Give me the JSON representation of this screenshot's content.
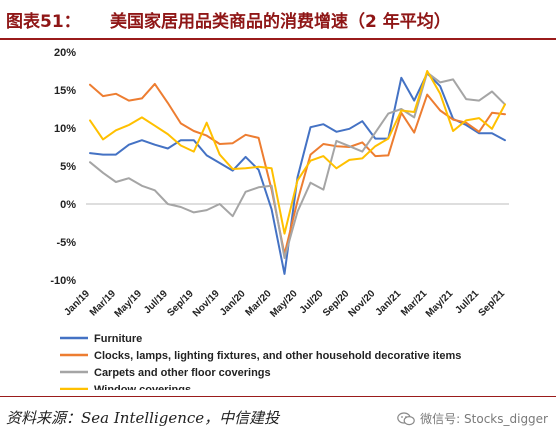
{
  "header": {
    "label": "图表51：",
    "title": "美国家居用品类商品的消费增速（2 年平均）"
  },
  "footer": {
    "source": "资料来源：Sea Intelligence，中信建投",
    "watermark": "微信号: Stocks_digger",
    "watermark_icon": "wechat-icon"
  },
  "chart_data": {
    "type": "line",
    "title": "",
    "xlabel": "",
    "ylabel": "",
    "ylim": [
      -10,
      20
    ],
    "yticks": [
      20,
      15,
      10,
      5,
      0,
      -5,
      -10
    ],
    "ytick_labels": [
      "20%",
      "15%",
      "10%",
      "5%",
      "0%",
      "-5%",
      "-10%"
    ],
    "grid": false,
    "legend_position": "bottom",
    "x": [
      "Jan/19",
      "Feb/19",
      "Mar/19",
      "Apr/19",
      "May/19",
      "Jun/19",
      "Jul/19",
      "Aug/19",
      "Sep/19",
      "Oct/19",
      "Nov/19",
      "Dec/19",
      "Jan/20",
      "Feb/20",
      "Mar/20",
      "Apr/20",
      "May/20",
      "Jun/20",
      "Jul/20",
      "Aug/20",
      "Sep/20",
      "Oct/20",
      "Nov/20",
      "Dec/20",
      "Jan/21",
      "Feb/21",
      "Mar/21",
      "Apr/21",
      "May/21",
      "Jun/21",
      "Jul/21",
      "Aug/21",
      "Sep/21"
    ],
    "x_tick_labels": [
      "Jan/19",
      "Mar/19",
      "May/19",
      "Jul/19",
      "Sep/19",
      "Nov/19",
      "Jan/20",
      "Mar/20",
      "May/20",
      "Jul/20",
      "Sep/20",
      "Nov/20",
      "Jan/21",
      "Mar/21",
      "May/21",
      "Jul/21",
      "Sep/21"
    ],
    "series": [
      {
        "name": "Furniture",
        "color": "#4472c4",
        "values": [
          6.7,
          6.5,
          6.5,
          7.8,
          8.4,
          7.8,
          7.3,
          8.4,
          8.4,
          6.4,
          5.4,
          4.4,
          6.2,
          4.5,
          -0.7,
          -9.2,
          3.5,
          10.1,
          10.5,
          9.5,
          9.9,
          10.9,
          8.6,
          8.6,
          16.6,
          13.6,
          17.2,
          15.5,
          11.2,
          10.4,
          9.3,
          9.3,
          8.4
        ]
      },
      {
        "name": "Clocks, lamps, lighting fixtures, and other household decorative items",
        "color": "#ed7d31",
        "values": [
          15.7,
          14.2,
          14.5,
          13.6,
          13.9,
          15.8,
          13.3,
          10.6,
          9.6,
          9.0,
          7.9,
          8.0,
          9.1,
          8.7,
          1.9,
          -6.6,
          0.4,
          6.5,
          7.9,
          7.6,
          7.5,
          8.1,
          6.3,
          6.4,
          12.0,
          9.4,
          14.4,
          12.3,
          11.1,
          10.7,
          9.5,
          12.0,
          11.8
        ]
      },
      {
        "name": "Carpets and other floor coverings",
        "color": "#a5a5a5",
        "values": [
          5.5,
          4.1,
          2.9,
          3.4,
          2.4,
          1.8,
          0.0,
          -0.4,
          -1.1,
          -0.8,
          0.0,
          -1.6,
          1.6,
          2.2,
          2.4,
          -7.1,
          -1.0,
          2.8,
          1.9,
          8.3,
          7.6,
          6.9,
          9.4,
          11.9,
          12.5,
          11.4,
          17.3,
          16.0,
          16.4,
          13.8,
          13.6,
          14.8,
          13.1
        ]
      },
      {
        "name": "Window coverings",
        "color": "#ffc000",
        "values": [
          11.0,
          8.5,
          9.7,
          10.4,
          11.4,
          10.3,
          9.2,
          7.7,
          6.9,
          10.7,
          6.5,
          4.6,
          4.7,
          4.9,
          4.7,
          -3.9,
          3.1,
          5.7,
          6.3,
          4.7,
          5.8,
          6.0,
          7.6,
          8.6,
          12.3,
          12.1,
          17.5,
          14.5,
          9.6,
          11.0,
          11.3,
          9.9,
          13.1
        ]
      }
    ]
  }
}
